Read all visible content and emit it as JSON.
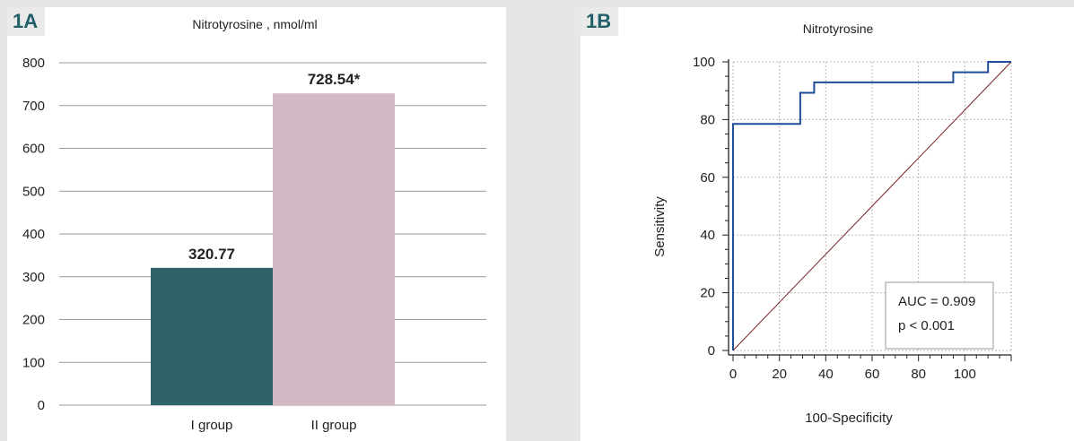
{
  "charts": {
    "a": {
      "tag": "1A",
      "title": "Nitrotyrosine , nmol/ml",
      "yticks": [
        "800",
        "700",
        "600",
        "500",
        "400",
        "300",
        "200",
        "100",
        "0"
      ],
      "bar_labels": [
        "320.77",
        "728.54*"
      ],
      "categories": [
        "I group",
        "II group"
      ]
    },
    "b": {
      "tag": "1B",
      "title": "Nitrotyrosine",
      "ylabel": "Sensitivity",
      "xlabel": "100-Specificity",
      "yticks": [
        "100",
        "80",
        "60",
        "40",
        "20",
        "0"
      ],
      "xticks": [
        "0",
        "20",
        "40",
        "60",
        "80",
        "100"
      ],
      "auc_text": "AUC = 0.909",
      "p_text": "p < 0.001"
    }
  },
  "colors": {
    "group1": "#2e6469",
    "group2": "#d3b9c6",
    "roc": "#1f4e99",
    "reference": "#7a1f1f"
  },
  "chart_data": [
    {
      "type": "bar",
      "title": "Nitrotyrosine , nmol/ml",
      "categories": [
        "I group",
        "II group"
      ],
      "values": [
        320.77,
        728.54
      ],
      "data_labels": [
        "320.77",
        "728.54*"
      ],
      "ylim": [
        0,
        800
      ],
      "grid": true
    },
    {
      "type": "line",
      "title": "Nitrotyrosine",
      "xlabel": "100-Specificity",
      "ylabel": "Sensitivity",
      "xlim": [
        0,
        120
      ],
      "ylim": [
        0,
        100
      ],
      "grid": true,
      "series": [
        {
          "x": [
            0,
            0,
            29,
            29,
            35,
            35,
            95,
            95,
            110,
            110,
            120
          ],
          "y": [
            0,
            78.5,
            78.5,
            89.3,
            89.3,
            92.9,
            92.9,
            96.4,
            96.4,
            100,
            100
          ]
        },
        {
          "x": [
            0,
            120
          ],
          "y": [
            0,
            100
          ]
        }
      ],
      "annotations": [
        "AUC = 0.909",
        "p < 0.001"
      ]
    }
  ]
}
